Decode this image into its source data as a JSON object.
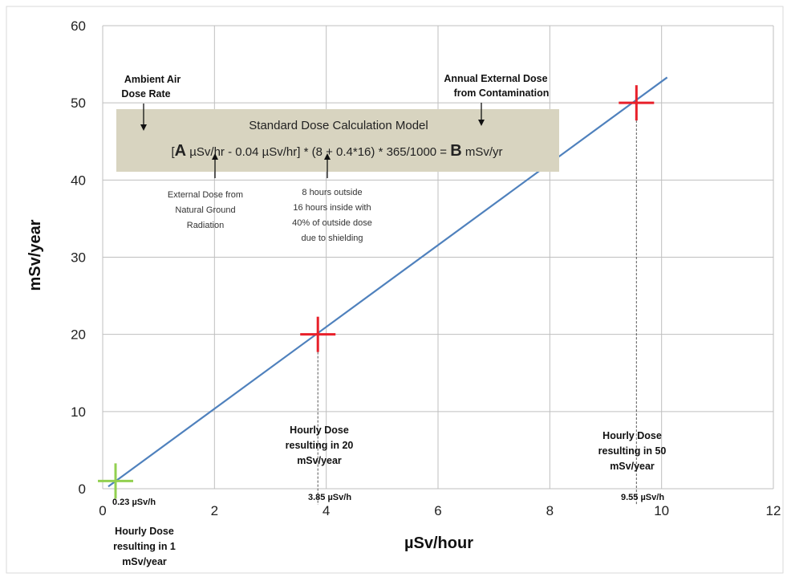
{
  "chart_data": {
    "type": "line",
    "xlabel": "µSv/hour",
    "ylabel": "mSv/year",
    "xlim": [
      0,
      12
    ],
    "ylim": [
      0,
      60
    ],
    "x_ticks": [
      "0",
      "2",
      "4",
      "6",
      "8",
      "10",
      "12"
    ],
    "y_ticks": [
      "0",
      "10",
      "20",
      "30",
      "40",
      "50",
      "60"
    ],
    "grid": true,
    "series": [
      {
        "x": [
          0.1,
          10.1
        ],
        "y": [
          0.29,
          53.3
        ],
        "color": "#4f81bd"
      }
    ],
    "markers": [
      {
        "x": 0.23,
        "y": 1,
        "color": "#92d050",
        "label": "0.23 µSv/h",
        "caption": [
          "Hourly Dose",
          "resulting in 1",
          "mSv/year"
        ]
      },
      {
        "x": 3.85,
        "y": 20,
        "color": "#e8202a",
        "label": "3.85 µSv/h",
        "caption": [
          "Hourly Dose",
          "resulting in 20",
          "mSv/year"
        ]
      },
      {
        "x": 9.55,
        "y": 50,
        "color": "#e8202a",
        "label": "9.55 µSv/h",
        "caption": [
          "Hourly Dose",
          "resulting in 50",
          "mSv/year"
        ]
      }
    ],
    "model_box": {
      "title": "Standard Dose Calculation Model",
      "formula_parts": [
        "[",
        "A",
        " µSv/hr - 0.04 µSv/hr] * (8 + 0.4*16) * 365/1000 = ",
        "B",
        " mSv/yr"
      ],
      "background": "#d8d4c0"
    },
    "annotations": {
      "ambient": [
        "Ambient Air",
        "Dose Rate"
      ],
      "annual": [
        "Annual External Dose",
        "from Contamination"
      ],
      "external": [
        "External Dose from",
        "Natural Ground",
        "Radiation"
      ],
      "hours": [
        "8 hours outside",
        "16 hours inside with",
        "40% of outside dose",
        "due to shielding"
      ]
    }
  }
}
